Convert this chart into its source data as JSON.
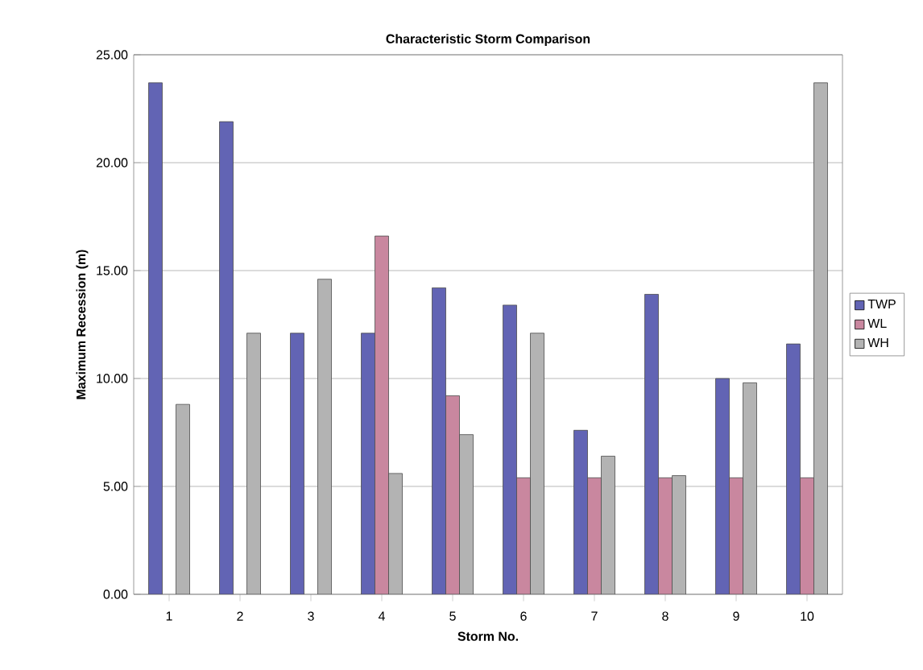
{
  "chart_data": {
    "type": "bar",
    "title": "Characteristic Storm Comparison",
    "xlabel": "Storm No.",
    "ylabel": "Maximum Recession (m)",
    "categories": [
      "1",
      "2",
      "3",
      "4",
      "5",
      "6",
      "7",
      "8",
      "9",
      "10"
    ],
    "series": [
      {
        "name": "TWP",
        "color": "#6264b4",
        "values": [
          23.7,
          21.9,
          12.1,
          12.1,
          14.2,
          13.4,
          7.6,
          13.9,
          10.0,
          11.6
        ]
      },
      {
        "name": "WL",
        "color": "#c9879f",
        "values": [
          null,
          null,
          null,
          16.6,
          9.2,
          5.4,
          5.4,
          5.4,
          5.4,
          5.4
        ]
      },
      {
        "name": "WH",
        "color": "#b3b3b3",
        "values": [
          8.8,
          12.1,
          14.6,
          5.6,
          7.4,
          12.1,
          6.4,
          5.5,
          9.8,
          23.7
        ]
      }
    ],
    "ylim": [
      0,
      25
    ],
    "yticks": [
      {
        "value": 0,
        "label": "0.00"
      },
      {
        "value": 5,
        "label": "5.00"
      },
      {
        "value": 10,
        "label": "10.00"
      },
      {
        "value": 15,
        "label": "15.00"
      },
      {
        "value": 20,
        "label": "20.00"
      },
      {
        "value": 25,
        "label": "25.00"
      }
    ],
    "grid": "y",
    "legend": "right"
  }
}
